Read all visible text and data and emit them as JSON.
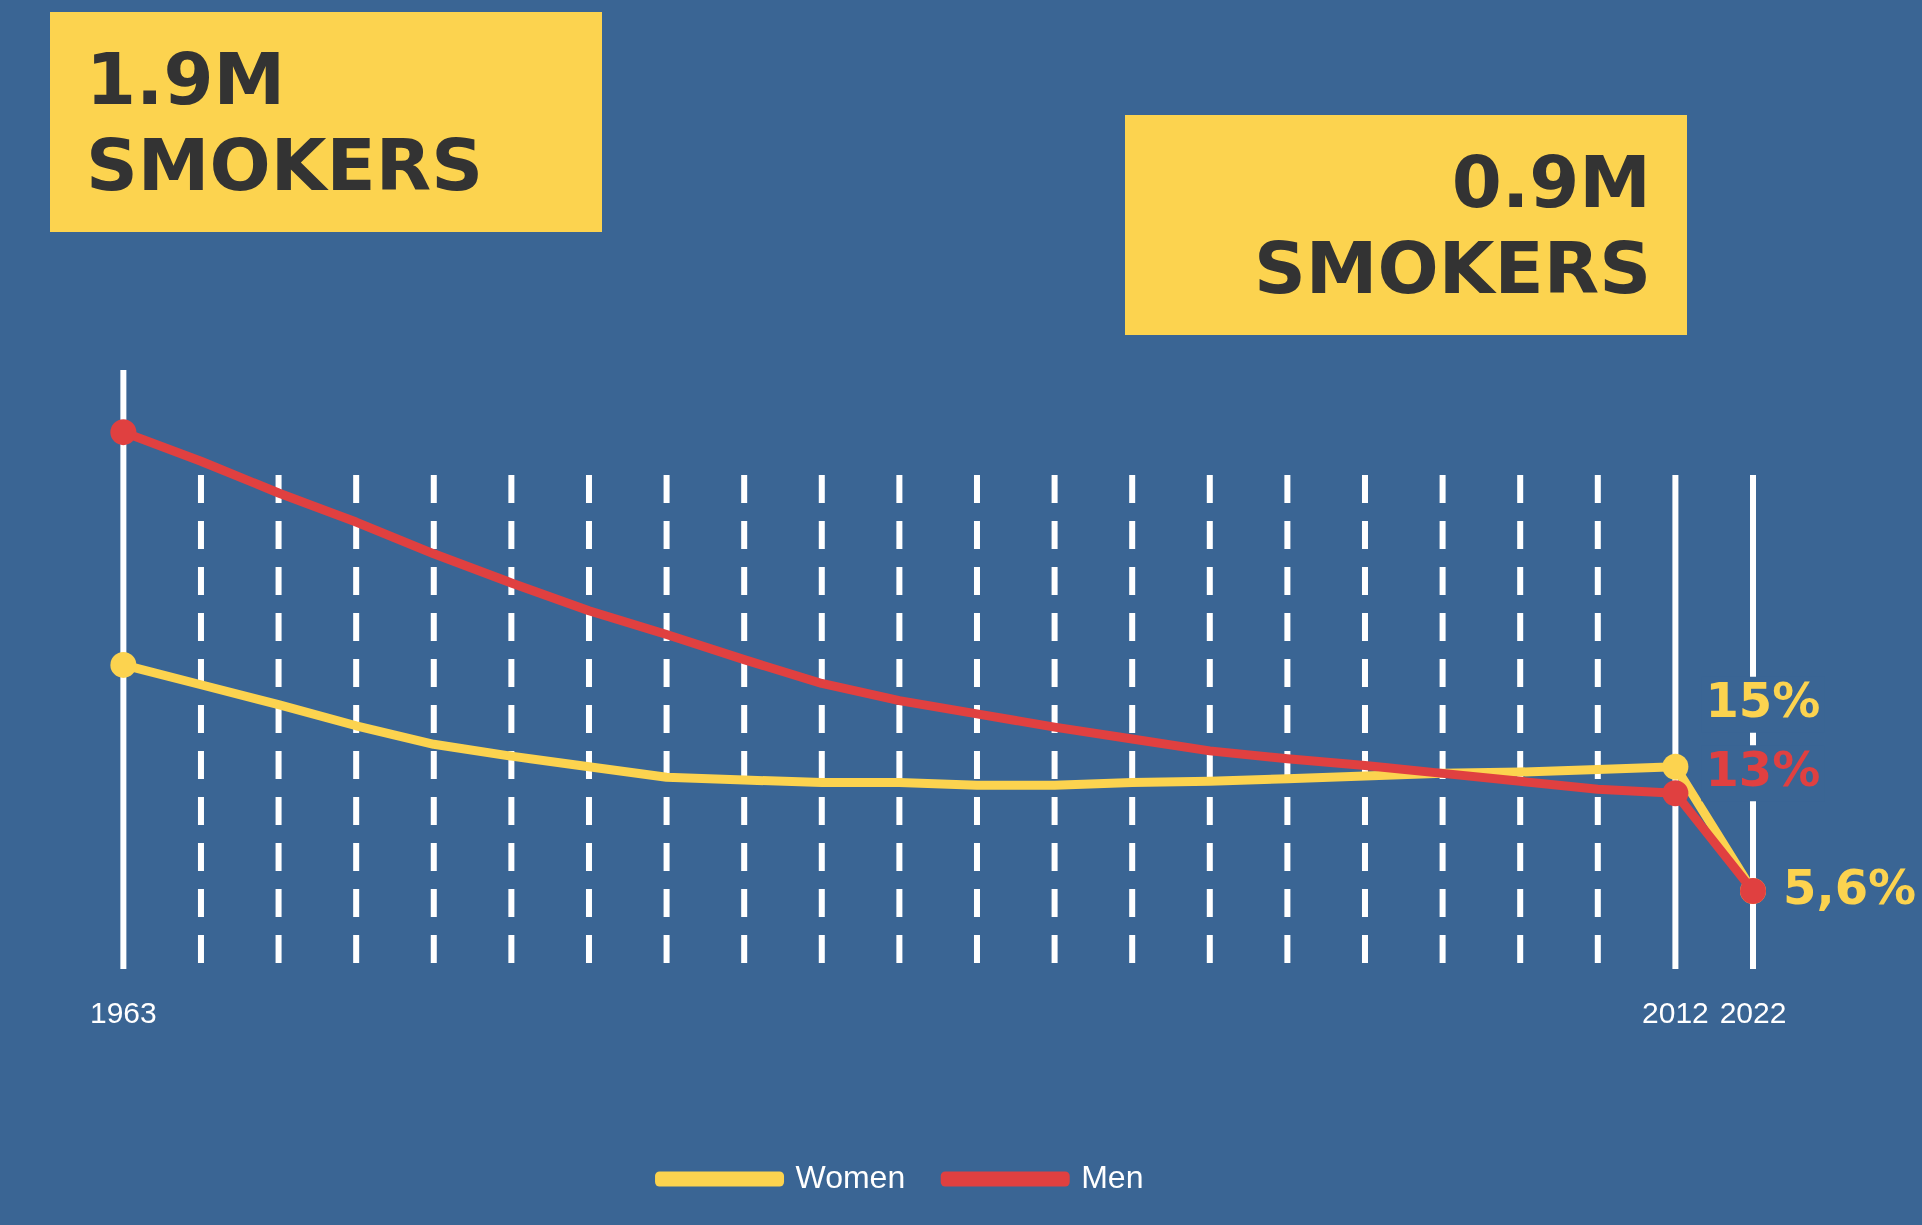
{
  "chart_data": {
    "type": "line",
    "categories": [
      "1963",
      null,
      null,
      null,
      null,
      null,
      null,
      null,
      null,
      null,
      null,
      null,
      null,
      null,
      null,
      null,
      null,
      null,
      null,
      null,
      "2012",
      "2022"
    ],
    "series": [
      {
        "name": "Women",
        "color": "#fcd34f",
        "values": [
          22.7,
          21.2,
          19.7,
          18.1,
          16.7,
          15.8,
          15,
          14.2,
          14,
          13.8,
          13.8,
          13.6,
          13.6,
          13.8,
          13.9,
          14.1,
          14.3,
          14.5,
          14.6,
          14.8,
          15,
          5.6
        ],
        "value_labels": [
          null,
          null,
          null,
          null,
          null,
          null,
          null,
          null,
          null,
          null,
          null,
          null,
          null,
          null,
          null,
          null,
          null,
          null,
          null,
          null,
          "15%",
          "5,6%"
        ]
      },
      {
        "name": "Men",
        "color": "#e04040",
        "values": [
          40.3,
          38.1,
          35.7,
          33.5,
          31.1,
          28.9,
          26.8,
          25,
          23.1,
          21.3,
          20,
          19,
          18,
          17.1,
          16.2,
          15.6,
          15.1,
          14.5,
          13.9,
          13.3,
          13,
          5.6
        ],
        "value_labels": [
          null,
          null,
          null,
          null,
          null,
          null,
          null,
          null,
          null,
          null,
          null,
          null,
          null,
          null,
          null,
          null,
          null,
          null,
          null,
          null,
          "13%",
          null
        ]
      }
    ],
    "tick_labels": "x",
    "annotations": [
      "1.9M SMOKERS",
      "0.9M SMOKERS"
    ],
    "grid": "x",
    "legend": "bottom",
    "line_style": "solid"
  }
}
